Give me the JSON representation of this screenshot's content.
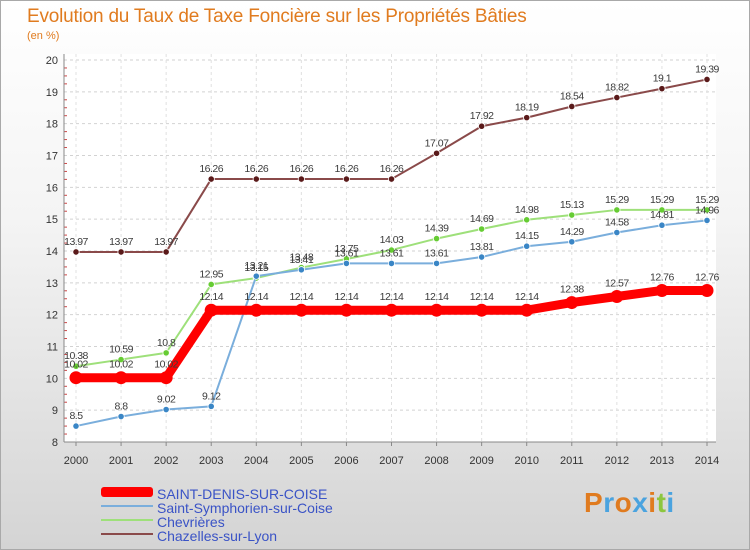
{
  "chart_data": {
    "type": "line",
    "title": "Evolution du Taux de Taxe Foncière sur les Propriétés Bâties",
    "ylabel": "(en %)",
    "xlabel": "",
    "ylim": [
      8,
      20
    ],
    "yticks": [
      "8",
      "9",
      "10",
      "11",
      "12",
      "13",
      "14",
      "15",
      "16",
      "17",
      "18",
      "19",
      "20"
    ],
    "categories": [
      "2000",
      "2001",
      "2002",
      "2003",
      "2004",
      "2005",
      "2006",
      "2007",
      "2008",
      "2009",
      "2010",
      "2011",
      "2012",
      "2013",
      "2014"
    ],
    "grid": "horizontal dashed",
    "series": [
      {
        "name": "Chazelles-sur-Lyon",
        "color": "#8a4a4a",
        "marker": "#5a1a1a",
        "values": [
          13.97,
          13.97,
          13.97,
          16.26,
          16.26,
          16.26,
          16.26,
          16.26,
          17.07,
          17.92,
          18.19,
          18.54,
          18.82,
          19.1,
          19.39
        ],
        "labels": [
          "13.97",
          "13.97",
          "13.97",
          "16.26",
          "16.26",
          "16.26",
          "16.26",
          "16.26",
          "17.07",
          "17.92",
          "18.19",
          "18.54",
          "18.82",
          "19.1",
          "19.39"
        ]
      },
      {
        "name": "Chevrières",
        "color": "#9ee07a",
        "marker": "#66cc33",
        "values": [
          10.38,
          10.59,
          10.8,
          12.95,
          13.15,
          13.48,
          13.75,
          14.03,
          14.39,
          14.69,
          14.98,
          15.13,
          15.29,
          15.29,
          15.29
        ],
        "labels": [
          "10.38",
          "10.59",
          "10.8",
          "12.95",
          "13.15",
          "13.48",
          "13.75",
          "14.03",
          "14.39",
          "14.69",
          "14.98",
          "15.13",
          "15.29",
          "15.29",
          "15.29"
        ]
      },
      {
        "name": "Saint-Symphorien-sur-Coise",
        "color": "#7aaedc",
        "marker": "#3a86c6",
        "values": [
          8.5,
          8.8,
          9.02,
          9.12,
          13.21,
          13.41,
          13.61,
          13.61,
          13.61,
          13.81,
          14.15,
          14.29,
          14.58,
          14.81,
          14.96
        ],
        "labels": [
          "8.5",
          "8.8",
          "9.02",
          "9.12",
          "13.21",
          "13.41",
          "13.61",
          "13.61",
          "13.61",
          "13.81",
          "14.15",
          "14.29",
          "14.58",
          "14.81",
          "14.96"
        ]
      },
      {
        "name": "SAINT-DENIS-SUR-COISE",
        "color": "#ff0000",
        "marker": "#ff0000",
        "values": [
          10.02,
          10.02,
          10.02,
          12.14,
          12.14,
          12.14,
          12.14,
          12.14,
          12.14,
          12.14,
          12.14,
          12.38,
          12.57,
          12.76,
          12.76
        ],
        "labels": [
          "10.02",
          "10.02",
          "10.02",
          "12.14",
          "12.14",
          "12.14",
          "12.14",
          "12.14",
          "12.14",
          "12.14",
          "12.14",
          "12.38",
          "12.57",
          "12.76",
          "12.76"
        ]
      }
    ],
    "legend": [
      {
        "name": "SAINT-DENIS-SUR-COISE",
        "color": "#ff0000"
      },
      {
        "name": "Saint-Symphorien-sur-Coise",
        "color": "#7aaedc"
      },
      {
        "name": "Chevrières",
        "color": "#9ee07a"
      },
      {
        "name": "Chazelles-sur-Lyon",
        "color": "#8a4a4a"
      }
    ],
    "legend_position": "bottom-left"
  },
  "brand": {
    "text": "Proxiti",
    "letters": [
      {
        "ch": "P",
        "color": "#e07b1f"
      },
      {
        "ch": "r",
        "color": "#4aa3df"
      },
      {
        "ch": "o",
        "color": "#e07b1f"
      },
      {
        "ch": "x",
        "color": "#4aa3df"
      },
      {
        "ch": "i",
        "color": "#e07b1f"
      },
      {
        "ch": "t",
        "color": "#8cc63f"
      },
      {
        "ch": "i",
        "color": "#4aa3df"
      }
    ]
  }
}
